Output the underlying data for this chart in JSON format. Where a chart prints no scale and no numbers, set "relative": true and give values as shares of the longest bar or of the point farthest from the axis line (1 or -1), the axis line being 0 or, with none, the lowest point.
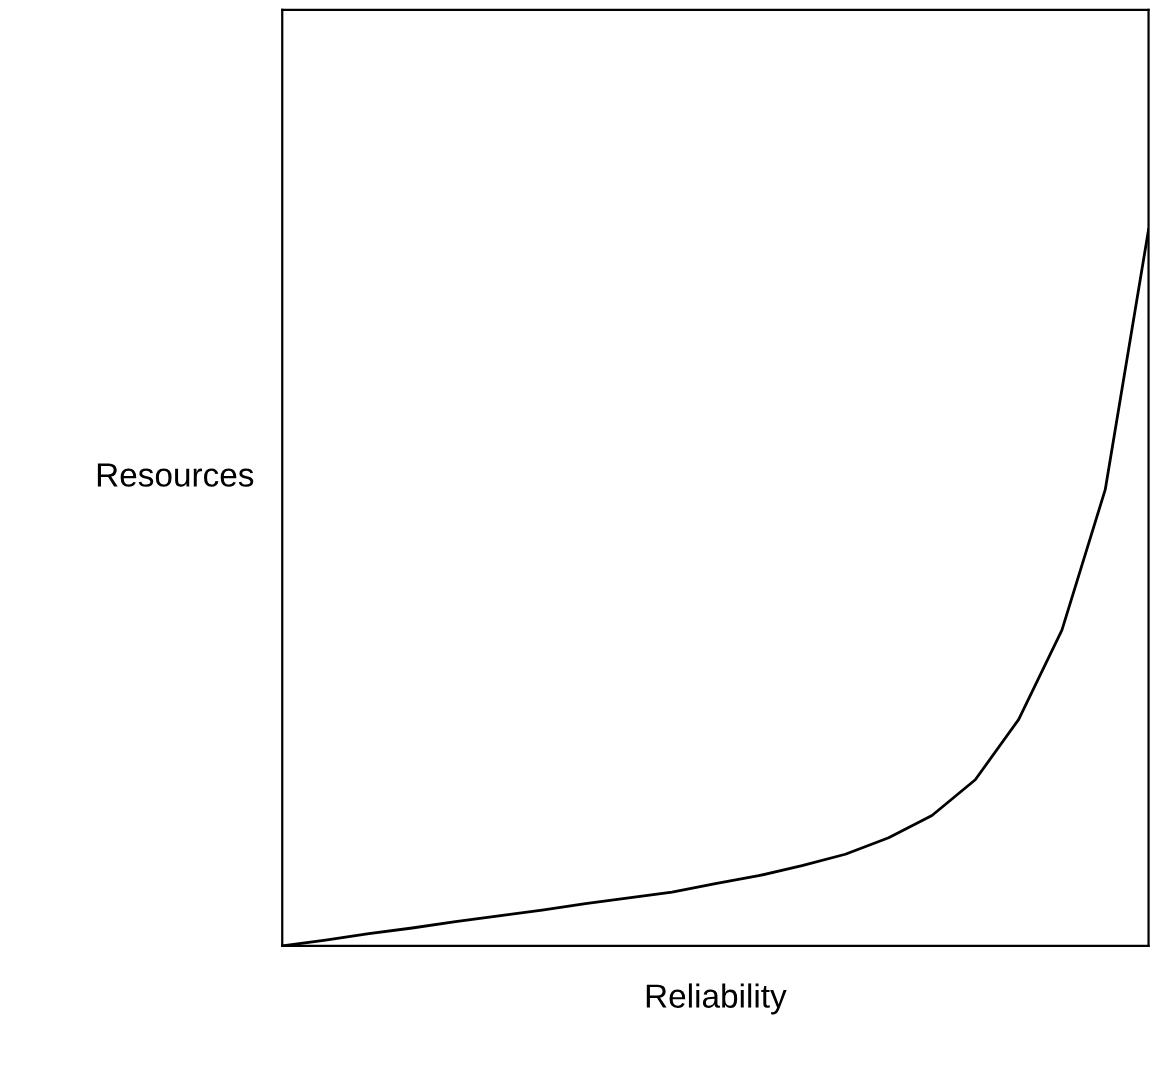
{
  "chart_data": {
    "type": "line",
    "xlabel": "Reliability",
    "ylabel": "Resources",
    "relative": true,
    "grid": false,
    "legend": false,
    "marker": "none",
    "line_style": "solid",
    "categories": [
      null,
      null,
      null,
      null,
      null,
      null,
      null,
      null,
      null,
      null,
      null,
      null,
      null,
      null,
      null,
      null,
      null,
      null,
      null,
      null,
      null
    ],
    "series": [
      {
        "color": "#000000",
        "values": [
          0,
          0.008,
          0.017,
          0.025,
          0.034,
          0.042,
          0.05,
          0.059,
          0.067,
          0.075,
          0.087,
          0.098,
          0.112,
          0.128,
          0.151,
          0.182,
          0.232,
          0.316,
          0.441,
          0.637,
          1
        ]
      }
    ]
  }
}
